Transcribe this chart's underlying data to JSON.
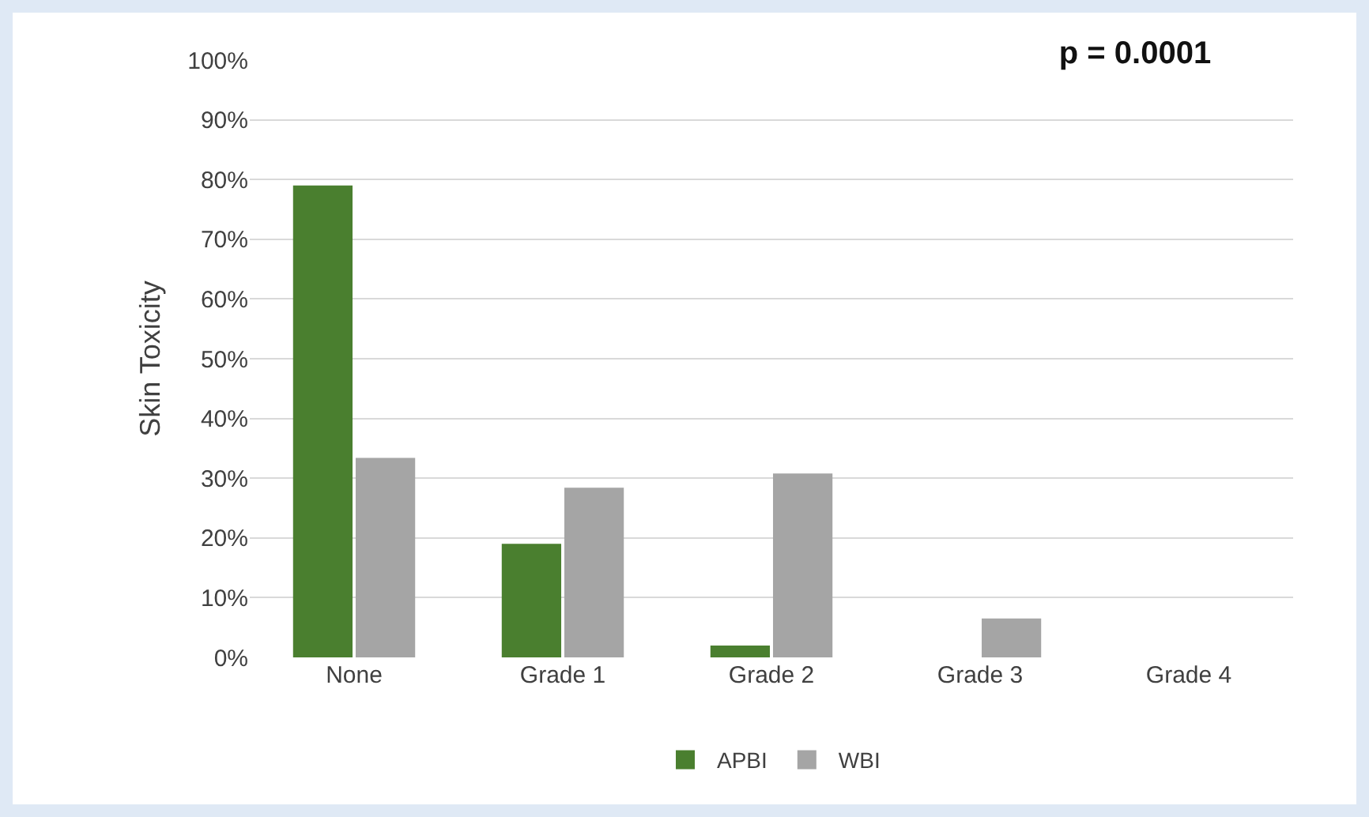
{
  "chart_data": {
    "type": "bar",
    "ylabel": "Skin Toxicity",
    "categories": [
      "None",
      "Grade 1",
      "Grade 2",
      "Grade 3",
      "Grade 4"
    ],
    "series": [
      {
        "name": "APBI",
        "color": "#4a7f2f",
        "values": [
          79,
          19,
          2,
          0,
          0
        ]
      },
      {
        "name": "WBI",
        "color": "#a5a5a5",
        "values": [
          33.4,
          28.4,
          30.8,
          6.5,
          0
        ]
      }
    ],
    "ylim": [
      0,
      100
    ],
    "yticks": [
      {
        "value": 0,
        "label": "0%"
      },
      {
        "value": 10,
        "label": "10%"
      },
      {
        "value": 20,
        "label": "20%"
      },
      {
        "value": 30,
        "label": "30%"
      },
      {
        "value": 40,
        "label": "40%"
      },
      {
        "value": 50,
        "label": "50%"
      },
      {
        "value": 60,
        "label": "60%"
      },
      {
        "value": 70,
        "label": "70%"
      },
      {
        "value": 80,
        "label": "80%"
      },
      {
        "value": 90,
        "label": "90%"
      },
      {
        "value": 100,
        "label": "100%"
      }
    ],
    "grid": "y",
    "legend": "bottom",
    "annotations": [
      "p = 0.0001"
    ]
  }
}
